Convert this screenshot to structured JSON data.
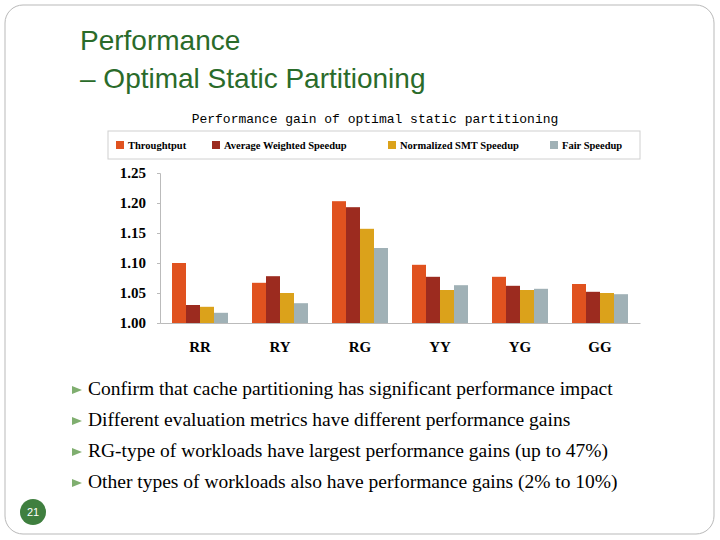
{
  "slide_title": [
    "Performance",
    "– Optimal Static Partitioning"
  ],
  "bullets": [
    "Confirm that cache partitioning has significant performance impact",
    "Different evaluation metrics have different performance gains",
    "RG-type of workloads have largest performance gains (up to 47%)",
    "Other types of workloads also have performance gains (2% to 10%)"
  ],
  "page_number": "21",
  "chart_data": {
    "type": "bar",
    "title": "Performance gain of optimal static partitioning",
    "categories": [
      "RR",
      "RY",
      "RG",
      "YY",
      "YG",
      "GG"
    ],
    "series": [
      {
        "name": "Throughtput",
        "color": "#e0521f",
        "values": [
          1.1,
          1.067,
          1.203,
          1.097,
          1.077,
          1.065
        ]
      },
      {
        "name": "Average Weighted Speedup",
        "color": "#9c2b1f",
        "values": [
          1.03,
          1.078,
          1.193,
          1.077,
          1.062,
          1.052
        ]
      },
      {
        "name": "Normalized SMT Speedup",
        "color": "#dba21b",
        "values": [
          1.027,
          1.05,
          1.157,
          1.055,
          1.055,
          1.05
        ]
      },
      {
        "name": "Fair Speedup",
        "color": "#a0b1b6",
        "values": [
          1.017,
          1.033,
          1.125,
          1.063,
          1.057,
          1.048
        ]
      }
    ],
    "ylim": [
      1.0,
      1.25
    ],
    "yticks": [
      {
        "value": 1.0,
        "label": "1.00"
      },
      1.05,
      {
        "value": 1.1,
        "label": "1.10"
      },
      1.15,
      {
        "value": 1.2,
        "label": "1.20"
      },
      1.25
    ],
    "grid": false,
    "legend": "top",
    "data_labels": false
  }
}
